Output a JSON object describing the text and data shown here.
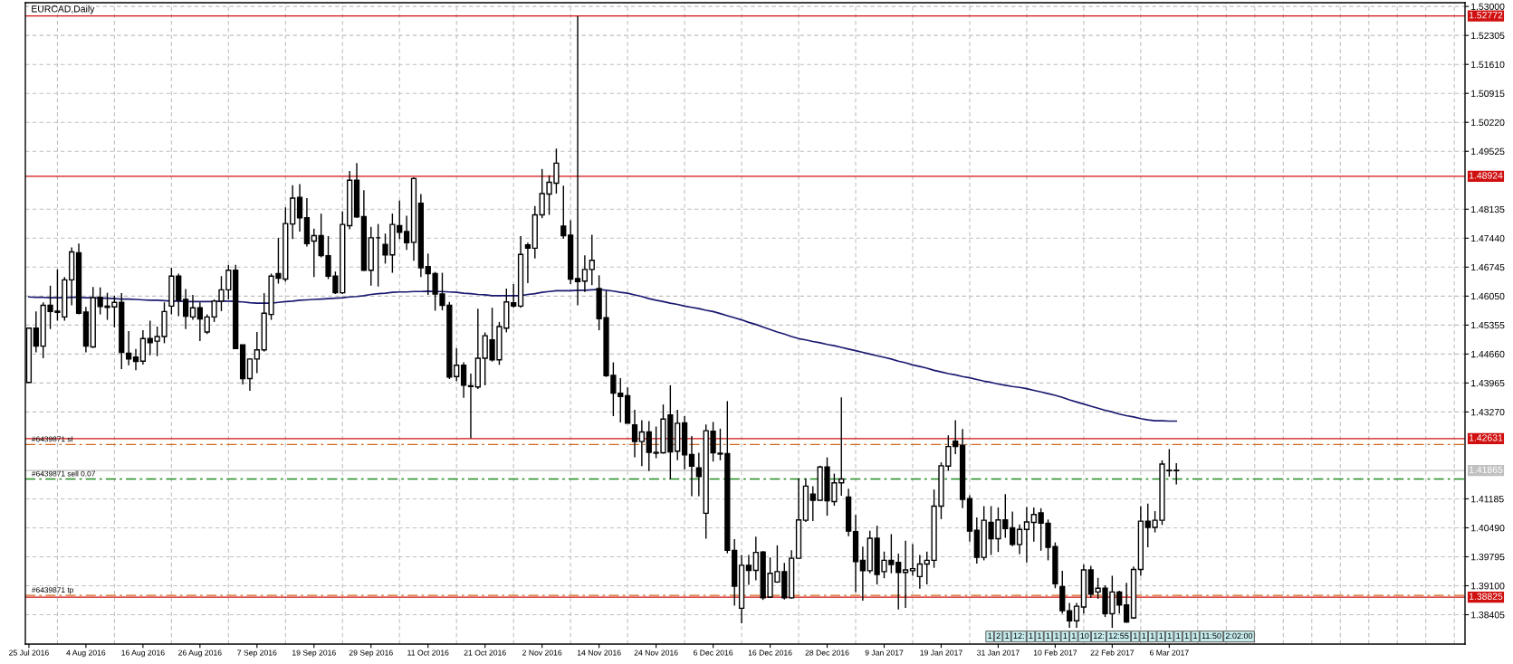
{
  "chart_data": {
    "type": "candlestick",
    "title": "EURCAD,Daily",
    "categories": [
      "25 Jul 2016",
      null,
      null,
      null,
      null,
      null,
      null,
      null,
      "4 Aug 2016",
      null,
      null,
      null,
      null,
      null,
      null,
      null,
      "16 Aug 2016",
      null,
      null,
      null,
      null,
      null,
      null,
      null,
      "26 Aug 2016",
      null,
      null,
      null,
      null,
      null,
      null,
      null,
      "7 Sep 2016",
      null,
      null,
      null,
      null,
      null,
      null,
      null,
      "19 Sep 2016",
      null,
      null,
      null,
      null,
      null,
      null,
      null,
      "29 Sep 2016",
      null,
      null,
      null,
      null,
      null,
      null,
      null,
      "11 Oct 2016",
      null,
      null,
      null,
      null,
      null,
      null,
      null,
      "21 Oct 2016",
      null,
      null,
      null,
      null,
      null,
      null,
      null,
      "2 Nov 2016",
      null,
      null,
      null,
      null,
      null,
      null,
      null,
      "14 Nov 2016",
      null,
      null,
      null,
      null,
      null,
      null,
      null,
      "24 Nov 2016",
      null,
      null,
      null,
      null,
      null,
      null,
      null,
      "6 Dec 2016",
      null,
      null,
      null,
      null,
      null,
      null,
      null,
      "16 Dec 2016",
      null,
      null,
      null,
      null,
      null,
      null,
      null,
      "28 Dec 2016",
      null,
      null,
      null,
      null,
      null,
      null,
      null,
      "9 Jan 2017",
      null,
      null,
      null,
      null,
      null,
      null,
      null,
      "19 Jan 2017",
      null,
      null,
      null,
      null,
      null,
      null,
      null,
      "31 Jan 2017",
      null,
      null,
      null,
      null,
      null,
      null,
      null,
      "10 Feb 2017",
      null,
      null,
      null,
      null,
      null,
      null,
      null,
      "22 Feb 2017",
      null,
      null,
      null,
      null,
      null,
      null,
      null,
      "6 Mar 2017",
      null
    ],
    "ohlc": [
      [
        1.4398,
        1.4528,
        1.4398,
        1.4528
      ],
      [
        1.4528,
        1.4568,
        1.447,
        1.4485
      ],
      [
        1.4485,
        1.459,
        1.4456,
        1.4583
      ],
      [
        1.4583,
        1.463,
        1.4526,
        1.4568
      ],
      [
        1.4569,
        1.4669,
        1.4546,
        1.4566
      ],
      [
        1.4555,
        1.4651,
        1.4546,
        1.4644
      ],
      [
        1.4644,
        1.4722,
        1.4583,
        1.4711
      ],
      [
        1.4709,
        1.4731,
        1.4561,
        1.4564
      ],
      [
        1.4567,
        1.4579,
        1.447,
        1.4485
      ],
      [
        1.4483,
        1.4627,
        1.4481,
        1.4601
      ],
      [
        1.4602,
        1.4626,
        1.4561,
        1.458
      ],
      [
        1.4581,
        1.4613,
        1.4548,
        1.4578
      ],
      [
        1.4579,
        1.4606,
        1.453,
        1.459
      ],
      [
        1.459,
        1.4612,
        1.443,
        1.447
      ],
      [
        1.4468,
        1.4521,
        1.4439,
        1.4454
      ],
      [
        1.4459,
        1.4478,
        1.4427,
        1.4448
      ],
      [
        1.4449,
        1.4523,
        1.4441,
        1.4503
      ],
      [
        1.4503,
        1.4546,
        1.4463,
        1.4493
      ],
      [
        1.4497,
        1.4532,
        1.4461,
        1.4508
      ],
      [
        1.4508,
        1.459,
        1.4492,
        1.4568
      ],
      [
        1.4581,
        1.4673,
        1.4561,
        1.4653
      ],
      [
        1.4653,
        1.4659,
        1.4557,
        1.4595
      ],
      [
        1.4597,
        1.4622,
        1.4526,
        1.4557
      ],
      [
        1.4555,
        1.4608,
        1.4548,
        1.4577
      ],
      [
        1.4577,
        1.459,
        1.4497,
        1.455
      ],
      [
        1.4519,
        1.4561,
        1.4514,
        1.4555
      ],
      [
        1.4555,
        1.4597,
        1.4543,
        1.4593
      ],
      [
        1.4593,
        1.4653,
        1.4569,
        1.462
      ],
      [
        1.462,
        1.468,
        1.4597,
        1.4667
      ],
      [
        1.4667,
        1.468,
        1.4479,
        1.4479
      ],
      [
        1.4488,
        1.4488,
        1.4393,
        1.4407
      ],
      [
        1.4407,
        1.4456,
        1.4378,
        1.4454
      ],
      [
        1.4454,
        1.4519,
        1.442,
        1.4476
      ],
      [
        1.4476,
        1.4612,
        1.4472,
        1.4564
      ],
      [
        1.4561,
        1.4659,
        1.4548,
        1.4653
      ],
      [
        1.4659,
        1.4745,
        1.4635,
        1.4648
      ],
      [
        1.4646,
        1.4818,
        1.464,
        1.4779
      ],
      [
        1.4778,
        1.4871,
        1.4742,
        1.484
      ],
      [
        1.4842,
        1.4874,
        1.476,
        1.4793
      ],
      [
        1.4793,
        1.484,
        1.4724,
        1.4731
      ],
      [
        1.4737,
        1.4767,
        1.4651,
        1.475
      ],
      [
        1.475,
        1.4803,
        1.4698,
        1.4702
      ],
      [
        1.4702,
        1.4749,
        1.4646,
        1.4653
      ],
      [
        1.4653,
        1.4664,
        1.461,
        1.4613
      ],
      [
        1.4613,
        1.4808,
        1.461,
        1.4777
      ],
      [
        1.4774,
        1.4905,
        1.4765,
        1.4883
      ],
      [
        1.4883,
        1.4924,
        1.4793,
        1.4795
      ],
      [
        1.4796,
        1.4859,
        1.4666,
        1.4667
      ],
      [
        1.4667,
        1.4771,
        1.463,
        1.4745
      ],
      [
        1.4745,
        1.4778,
        1.4628,
        1.4745
      ],
      [
        1.4729,
        1.4755,
        1.4683,
        1.4704
      ],
      [
        1.4704,
        1.4803,
        1.4661,
        1.4777
      ],
      [
        1.4774,
        1.4834,
        1.4742,
        1.4758
      ],
      [
        1.476,
        1.4798,
        1.4716,
        1.4733
      ],
      [
        1.4734,
        1.489,
        1.469,
        1.4887
      ],
      [
        1.4828,
        1.485,
        1.4651,
        1.4673
      ],
      [
        1.4676,
        1.4707,
        1.4608,
        1.4659
      ],
      [
        1.4659,
        1.4663,
        1.457,
        1.461
      ],
      [
        1.461,
        1.4661,
        1.4571,
        1.4583
      ],
      [
        1.4583,
        1.4591,
        1.4406,
        1.4411
      ],
      [
        1.4412,
        1.448,
        1.4401,
        1.4439
      ],
      [
        1.4439,
        1.4446,
        1.4361,
        1.4391
      ],
      [
        1.439,
        1.4419,
        1.4264,
        1.4388
      ],
      [
        1.4387,
        1.4575,
        1.4382,
        1.4456
      ],
      [
        1.4456,
        1.4518,
        1.4391,
        1.451
      ],
      [
        1.45,
        1.4577,
        1.4448,
        1.4452
      ],
      [
        1.4452,
        1.4543,
        1.444,
        1.4532
      ],
      [
        1.4528,
        1.4623,
        1.4518,
        1.4591
      ],
      [
        1.4589,
        1.4634,
        1.4577,
        1.4581
      ],
      [
        1.4581,
        1.4749,
        1.4577,
        1.4705
      ],
      [
        1.4728,
        1.4733,
        1.4636,
        1.472
      ],
      [
        1.472,
        1.4821,
        1.4695,
        1.48
      ],
      [
        1.48,
        1.491,
        1.4792,
        1.4851
      ],
      [
        1.485,
        1.4895,
        1.48,
        1.4878
      ],
      [
        1.4876,
        1.4959,
        1.4851,
        1.4924
      ],
      [
        1.4773,
        1.487,
        1.4743,
        1.475
      ],
      [
        1.4751,
        1.4787,
        1.4634,
        1.4646
      ],
      [
        1.4647,
        1.5277,
        1.4583,
        1.464
      ],
      [
        1.4641,
        1.4703,
        1.4615,
        1.4669
      ],
      [
        1.4669,
        1.4752,
        1.4631,
        1.4691
      ],
      [
        1.4623,
        1.4655,
        1.4523,
        1.4551
      ],
      [
        1.4553,
        1.4617,
        1.4411,
        1.4414
      ],
      [
        1.4415,
        1.4446,
        1.4317,
        1.4372
      ],
      [
        1.4372,
        1.4408,
        1.4302,
        1.4364
      ],
      [
        1.4366,
        1.4386,
        1.43,
        1.43
      ],
      [
        1.4296,
        1.4332,
        1.4218,
        1.4256
      ],
      [
        1.4256,
        1.4307,
        1.4197,
        1.4279
      ],
      [
        1.4279,
        1.4305,
        1.4185,
        1.423
      ],
      [
        1.423,
        1.4292,
        1.4216,
        1.4228
      ],
      [
        1.4229,
        1.4345,
        1.4227,
        1.431
      ],
      [
        1.432,
        1.4391,
        1.4166,
        1.4231
      ],
      [
        1.4233,
        1.4332,
        1.4211,
        1.43
      ],
      [
        1.4301,
        1.4317,
        1.4189,
        1.4224
      ],
      [
        1.4225,
        1.4269,
        1.4125,
        1.4197
      ],
      [
        1.4193,
        1.4229,
        1.4125,
        1.4172
      ],
      [
        1.4084,
        1.4297,
        1.4023,
        1.4282
      ],
      [
        1.4281,
        1.4303,
        1.4208,
        1.4229
      ],
      [
        1.4228,
        1.4287,
        1.4211,
        1.4226
      ],
      [
        1.4227,
        1.4353,
        1.3988,
        1.3995
      ],
      [
        1.3995,
        1.4022,
        1.3862,
        1.3909
      ],
      [
        1.3856,
        1.3984,
        1.382,
        1.3959
      ],
      [
        1.3959,
        1.3984,
        1.3912,
        1.3947
      ],
      [
        1.3947,
        1.4028,
        1.3923,
        1.399
      ],
      [
        1.3991,
        1.3993,
        1.3876,
        1.3881
      ],
      [
        1.3883,
        1.3978,
        1.3881,
        1.394
      ],
      [
        1.3919,
        1.4007,
        1.3917,
        1.3944
      ],
      [
        1.3944,
        1.3965,
        1.3877,
        1.3881
      ],
      [
        1.3881,
        1.3995,
        1.3879,
        1.3976
      ],
      [
        1.3976,
        1.4168,
        1.3976,
        1.4068
      ],
      [
        1.4067,
        1.4168,
        1.4063,
        1.4149
      ],
      [
        1.413,
        1.4149,
        1.4065,
        1.4115
      ],
      [
        1.4115,
        1.4198,
        1.4115,
        1.4195
      ],
      [
        1.4195,
        1.4218,
        1.4078,
        1.4114
      ],
      [
        1.4112,
        1.4179,
        1.4102,
        1.4157
      ],
      [
        1.4157,
        1.4362,
        1.4126,
        1.4166
      ],
      [
        1.4123,
        1.4143,
        1.4029,
        1.4041
      ],
      [
        1.404,
        1.408,
        1.3895,
        1.3968
      ],
      [
        1.3971,
        1.4004,
        1.3874,
        1.3946
      ],
      [
        1.3946,
        1.4042,
        1.394,
        1.4024
      ],
      [
        1.4024,
        1.4054,
        1.3913,
        1.3937
      ],
      [
        1.3944,
        1.3992,
        1.3928,
        1.3971
      ],
      [
        1.3971,
        1.4034,
        1.394,
        1.3961
      ],
      [
        1.3966,
        1.3987,
        1.3853,
        1.3942
      ],
      [
        1.3942,
        1.4018,
        1.3857,
        1.3948
      ],
      [
        1.3946,
        1.401,
        1.3934,
        1.3951
      ],
      [
        1.3932,
        1.3984,
        1.3903,
        1.3962
      ],
      [
        1.3962,
        1.3992,
        1.3913,
        1.3971
      ],
      [
        1.3971,
        1.4141,
        1.3953,
        1.4101
      ],
      [
        1.4101,
        1.4206,
        1.407,
        1.4198
      ],
      [
        1.4197,
        1.4271,
        1.4186,
        1.4244
      ],
      [
        1.4257,
        1.4307,
        1.4226,
        1.4244
      ],
      [
        1.4247,
        1.4286,
        1.4096,
        1.4117
      ],
      [
        1.4119,
        1.4127,
        1.4016,
        1.4041
      ],
      [
        1.4043,
        1.4074,
        1.3963,
        1.3978
      ],
      [
        1.3978,
        1.4101,
        1.3971,
        1.4067
      ],
      [
        1.4062,
        1.4101,
        1.3984,
        1.4023
      ],
      [
        1.4023,
        1.4098,
        1.3991,
        1.4068
      ],
      [
        1.4068,
        1.413,
        1.4025,
        1.4047
      ],
      [
        1.4049,
        1.4088,
        1.4005,
        1.4009
      ],
      [
        1.4009,
        1.4057,
        1.3986,
        1.4045
      ],
      [
        1.4045,
        1.4099,
        1.3966,
        1.4063
      ],
      [
        1.4062,
        1.4098,
        1.4016,
        1.4081
      ],
      [
        1.4085,
        1.4096,
        1.3994,
        1.406
      ],
      [
        1.406,
        1.4069,
        1.3971,
        1.4002
      ],
      [
        1.4004,
        1.4014,
        1.3904,
        1.3915
      ],
      [
        1.3908,
        1.3946,
        1.3843,
        1.385
      ],
      [
        1.385,
        1.3869,
        1.3809,
        1.3826
      ],
      [
        1.3826,
        1.3869,
        1.3809,
        1.3861
      ],
      [
        1.3859,
        1.3961,
        1.3843,
        1.3948
      ],
      [
        1.3948,
        1.3958,
        1.3881,
        1.389
      ],
      [
        1.3895,
        1.3929,
        1.3879,
        1.3904
      ],
      [
        1.3904,
        1.3911,
        1.3835,
        1.3843
      ],
      [
        1.3843,
        1.3934,
        1.3809,
        1.3895
      ],
      [
        1.3895,
        1.3898,
        1.3843,
        1.3864
      ],
      [
        1.3864,
        1.3917,
        1.3821,
        1.3823
      ],
      [
        1.3833,
        1.3956,
        1.383,
        1.3949
      ],
      [
        1.3949,
        1.4101,
        1.3934,
        1.4065
      ],
      [
        1.4065,
        1.4107,
        1.4002,
        1.405
      ],
      [
        1.405,
        1.4089,
        1.4038,
        1.4067
      ],
      [
        1.4067,
        1.4211,
        1.4056,
        1.4202
      ],
      [
        1.4187,
        1.4238,
        1.4172,
        1.4186
      ],
      [
        1.4186,
        1.4204,
        1.4153,
        1.4187
      ]
    ],
    "series": [
      {
        "type": "line",
        "color": "#191970",
        "values": [
          1.4603,
          1.4602,
          1.4602,
          1.4601,
          1.4601,
          1.4601,
          1.4602,
          1.4602,
          1.4601,
          1.4601,
          1.46,
          1.46,
          1.4599,
          1.4598,
          1.4598,
          1.4597,
          1.4596,
          1.4595,
          1.4595,
          1.4594,
          1.4593,
          1.4593,
          1.4592,
          1.4592,
          1.4592,
          1.4592,
          1.4592,
          1.4593,
          1.4593,
          1.4592,
          1.4591,
          1.4589,
          1.4588,
          1.4588,
          1.4588,
          1.459,
          1.4592,
          1.4593,
          1.4595,
          1.4596,
          1.4597,
          1.4598,
          1.4599,
          1.46,
          1.4601,
          1.4603,
          1.4604,
          1.4606,
          1.4609,
          1.4611,
          1.4612,
          1.4614,
          1.4615,
          1.4615,
          1.4616,
          1.4616,
          1.4617,
          1.4616,
          1.4616,
          1.4615,
          1.4614,
          1.4612,
          1.4611,
          1.4609,
          1.4608,
          1.4606,
          1.4606,
          1.4606,
          1.4606,
          1.4606,
          1.4609,
          1.4611,
          1.4614,
          1.4616,
          1.4618,
          1.4618,
          1.4618,
          1.4619,
          1.4619,
          1.462,
          1.4621,
          1.4619,
          1.4617,
          1.4614,
          1.4612,
          1.4608,
          1.4604,
          1.4599,
          1.4595,
          1.4592,
          1.4588,
          1.4585,
          1.4581,
          1.4578,
          1.4575,
          1.4571,
          1.4568,
          1.4563,
          1.4558,
          1.4553,
          1.4548,
          1.4542,
          1.4537,
          1.4531,
          1.4525,
          1.4519,
          1.4514,
          1.4508,
          1.4503,
          1.45,
          1.4496,
          1.4493,
          1.4489,
          1.4486,
          1.4482,
          1.4478,
          1.4474,
          1.447,
          1.4466,
          1.4462,
          1.4458,
          1.4454,
          1.4449,
          1.4445,
          1.444,
          1.4436,
          1.4432,
          1.4427,
          1.4423,
          1.4419,
          1.4416,
          1.4412,
          1.4409,
          1.4405,
          1.4401,
          1.4398,
          1.4394,
          1.4391,
          1.4388,
          1.4386,
          1.4383,
          1.4379,
          1.4375,
          1.4371,
          1.4367,
          1.4362,
          1.4356,
          1.4351,
          1.4346,
          1.4341,
          1.4336,
          1.4331,
          1.4327,
          1.4322,
          1.4318,
          1.4315,
          1.4311,
          1.4308,
          1.4306,
          1.4306,
          1.4305,
          1.4305
        ]
      }
    ],
    "ylim": [
      1.377,
      1.5309
    ],
    "yticks": [
      {
        "value": 1.53,
        "label": "1.53000"
      },
      {
        "value": 1.52305,
        "label": "1.52305"
      },
      {
        "value": 1.5161,
        "label": "1.51610"
      },
      {
        "value": 1.50915,
        "label": "1.50915"
      },
      {
        "value": 1.5022,
        "label": "1.50220"
      },
      {
        "value": 1.49525,
        "label": "1.49525"
      },
      {
        "value": 1.48135,
        "label": "1.48135"
      },
      {
        "value": 1.4744,
        "label": "1.47440"
      },
      {
        "value": 1.46745,
        "label": "1.46745"
      },
      {
        "value": 1.4605,
        "label": "1.46050"
      },
      {
        "value": 1.45355,
        "label": "1.45355"
      },
      {
        "value": 1.4466,
        "label": "1.44660"
      },
      {
        "value": 1.43965,
        "label": "1.43965"
      },
      {
        "value": 1.4327,
        "label": "1.43270"
      },
      {
        "value": 1.41185,
        "label": "1.41185"
      },
      {
        "value": 1.4049,
        "label": "1.40490"
      },
      {
        "value": 1.39795,
        "label": "1.39795"
      },
      {
        "value": 1.391,
        "label": "1.39100"
      },
      {
        "value": 1.38405,
        "label": "1.38405"
      }
    ],
    "grid": true,
    "ref_lines": [
      {
        "axis": "y",
        "value": 1.52772,
        "label": "1.52772",
        "color": "#d01010",
        "line_style": "solid"
      },
      {
        "axis": "y",
        "value": 1.48924,
        "label": "1.48924",
        "color": "#d01010",
        "line_style": "solid"
      },
      {
        "axis": "y",
        "value": 1.42631,
        "label": "1.42631",
        "color": "#d01010",
        "line_style": "solid"
      },
      {
        "axis": "y",
        "value": 1.38825,
        "label": "1.38825",
        "color": "#d01010",
        "line_style": "solid"
      },
      {
        "axis": "y",
        "value": 1.41865,
        "label": "1.41865",
        "color": "#c0c0c0",
        "line_style": "solid"
      },
      {
        "axis": "y",
        "value": 1.4249,
        "label": "#6439871 sl",
        "color": "#d2691e",
        "line_style": "dashed"
      },
      {
        "axis": "y",
        "value": 1.4166,
        "label": "#6439871 sell 0.07",
        "color": "#228b22",
        "line_style": "dashed"
      },
      {
        "axis": "y",
        "value": 1.3887,
        "label": "#6439871 tp",
        "color": "#d2691e",
        "line_style": "dashed"
      }
    ],
    "annotations": [
      "1",
      "2",
      "1",
      "12:",
      "1",
      "1",
      "1",
      "1",
      "1",
      "1",
      "10",
      "12:",
      "12:55",
      "1",
      "1",
      "1",
      "1",
      "1",
      "1",
      "1",
      "1",
      "11:50",
      "2:02:00"
    ]
  }
}
